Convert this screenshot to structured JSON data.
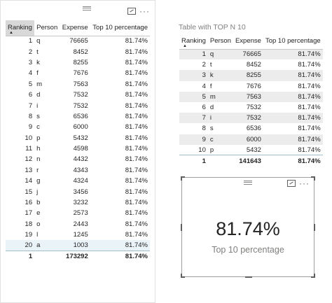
{
  "table_full": {
    "columns": [
      "Ranking",
      "Person",
      "Expense",
      "Top 10 percentage"
    ],
    "rows": [
      [
        "1",
        "q",
        "76665",
        "81.74%"
      ],
      [
        "2",
        "t",
        "8452",
        "81.74%"
      ],
      [
        "3",
        "k",
        "8255",
        "81.74%"
      ],
      [
        "4",
        "f",
        "7676",
        "81.74%"
      ],
      [
        "5",
        "m",
        "7563",
        "81.74%"
      ],
      [
        "6",
        "d",
        "7532",
        "81.74%"
      ],
      [
        "7",
        "i",
        "7532",
        "81.74%"
      ],
      [
        "8",
        "s",
        "6536",
        "81.74%"
      ],
      [
        "9",
        "c",
        "6000",
        "81.74%"
      ],
      [
        "10",
        "p",
        "5432",
        "81.74%"
      ],
      [
        "11",
        "h",
        "4598",
        "81.74%"
      ],
      [
        "12",
        "n",
        "4432",
        "81.74%"
      ],
      [
        "13",
        "r",
        "4343",
        "81.74%"
      ],
      [
        "14",
        "g",
        "4324",
        "81.74%"
      ],
      [
        "15",
        "j",
        "3456",
        "81.74%"
      ],
      [
        "16",
        "b",
        "3232",
        "81.74%"
      ],
      [
        "17",
        "e",
        "2573",
        "81.74%"
      ],
      [
        "18",
        "o",
        "2443",
        "81.74%"
      ],
      [
        "19",
        "l",
        "1245",
        "81.74%"
      ],
      [
        "20",
        "a",
        "1003",
        "81.74%"
      ]
    ],
    "total": [
      "1",
      "",
      "173292",
      "81.74%"
    ],
    "sort_arrow": "▲",
    "more_label": "···"
  },
  "table_top10": {
    "title": "Table with TOP N 10",
    "columns": [
      "Ranking",
      "Person",
      "Expense",
      "Top 10 percentage"
    ],
    "rows": [
      [
        "1",
        "q",
        "76665",
        "81.74%"
      ],
      [
        "2",
        "t",
        "8452",
        "81.74%"
      ],
      [
        "3",
        "k",
        "8255",
        "81.74%"
      ],
      [
        "4",
        "f",
        "7676",
        "81.74%"
      ],
      [
        "5",
        "m",
        "7563",
        "81.74%"
      ],
      [
        "6",
        "d",
        "7532",
        "81.74%"
      ],
      [
        "7",
        "i",
        "7532",
        "81.74%"
      ],
      [
        "8",
        "s",
        "6536",
        "81.74%"
      ],
      [
        "9",
        "c",
        "6000",
        "81.74%"
      ],
      [
        "10",
        "p",
        "5432",
        "81.74%"
      ]
    ],
    "total": [
      "1",
      "",
      "141643",
      "81.74%"
    ],
    "sort_arrow": "▲"
  },
  "card": {
    "value": "81.74%",
    "label": "Top 10 percentage",
    "more_label": "···"
  },
  "icons": {
    "drag_handle": "drag-handle-icon",
    "focus_mode": "focus-mode-icon",
    "more_options": "more-options-icon"
  },
  "colors": {
    "band_row": "#ececec",
    "header_sorted": "#d8d8d8",
    "selected_border": "#9fbfcf",
    "muted_text": "#807f7d"
  }
}
